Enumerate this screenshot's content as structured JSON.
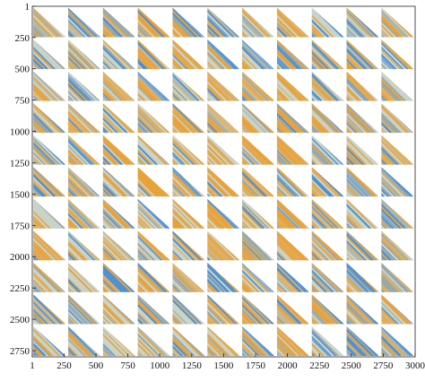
{
  "chart_data": {
    "type": "heatmap",
    "description_of_marks": "11 x 11 grid of triangular blocks, each filled with diagonal stripes",
    "x_ticks": [
      1,
      250,
      500,
      750,
      1000,
      1250,
      1500,
      1750,
      2000,
      2250,
      2500,
      2750,
      3000
    ],
    "y_ticks": [
      1,
      250,
      500,
      750,
      1000,
      1250,
      1500,
      1750,
      2000,
      2250,
      2500,
      2750
    ],
    "xlim": [
      1,
      3000
    ],
    "ylim": [
      1,
      2800
    ],
    "block_rows": 11,
    "block_cols": 11,
    "grid": false,
    "colors": {
      "orange": "#e8a23a",
      "blue": "#4a8fd6",
      "gray": "#9aa7a4",
      "light": "#c9d3c8"
    }
  }
}
